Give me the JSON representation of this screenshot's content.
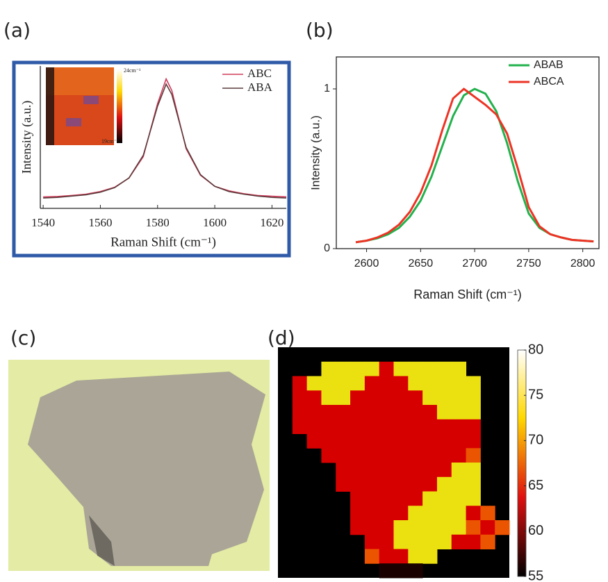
{
  "chart_data": [
    {
      "type": "line",
      "panel_label": "(a)",
      "xlabel": "Raman Shift (cm⁻¹)",
      "ylabel": "Intensity (a.u.)",
      "xlim": [
        1539,
        1625
      ],
      "xticks": [
        1540,
        1560,
        1580,
        1600,
        1620
      ],
      "ylim": [
        0,
        1.1
      ],
      "legend": "upper right",
      "inset_colorbar_labels": [
        "24cm⁻¹",
        "19cm⁻¹"
      ],
      "x": [
        1540,
        1545,
        1550,
        1555,
        1560,
        1565,
        1570,
        1575,
        1580,
        1583,
        1585,
        1590,
        1595,
        1600,
        1605,
        1610,
        1615,
        1620,
        1625
      ],
      "series": [
        {
          "name": "ABC",
          "color": "#d23a5a",
          "values": [
            0.088,
            0.092,
            0.1,
            0.11,
            0.13,
            0.163,
            0.234,
            0.4,
            0.81,
            1.0,
            0.91,
            0.46,
            0.256,
            0.17,
            0.135,
            0.114,
            0.1,
            0.094,
            0.089
          ]
        },
        {
          "name": "ABA",
          "color": "#5a3a3a",
          "values": [
            0.08,
            0.085,
            0.095,
            0.105,
            0.125,
            0.16,
            0.235,
            0.41,
            0.79,
            0.96,
            0.88,
            0.47,
            0.26,
            0.17,
            0.13,
            0.11,
            0.095,
            0.085,
            0.08
          ]
        }
      ]
    },
    {
      "type": "line",
      "panel_label": "(b)",
      "xlabel": "Raman Shift (cm⁻¹)",
      "ylabel": "Intensity (a.u.)",
      "xlim": [
        2572,
        2815
      ],
      "xticks": [
        2600,
        2650,
        2700,
        2750,
        2800
      ],
      "ylim": [
        0,
        1.2
      ],
      "yticks": [
        0,
        1
      ],
      "legend": "upper right",
      "x": [
        2590,
        2600,
        2610,
        2620,
        2630,
        2640,
        2650,
        2660,
        2670,
        2680,
        2690,
        2700,
        2710,
        2720,
        2730,
        2740,
        2750,
        2760,
        2770,
        2780,
        2790,
        2800,
        2810
      ],
      "series": [
        {
          "name": "ABAB",
          "color": "#22b14c",
          "values": [
            0.04,
            0.05,
            0.065,
            0.09,
            0.13,
            0.2,
            0.3,
            0.45,
            0.64,
            0.83,
            0.96,
            1.0,
            0.97,
            0.86,
            0.66,
            0.42,
            0.22,
            0.13,
            0.09,
            0.07,
            0.055,
            0.05,
            0.045
          ]
        },
        {
          "name": "ABCA",
          "color": "#ed3324",
          "values": [
            0.04,
            0.05,
            0.07,
            0.1,
            0.15,
            0.23,
            0.35,
            0.52,
            0.74,
            0.94,
            1.0,
            0.95,
            0.9,
            0.84,
            0.72,
            0.5,
            0.26,
            0.14,
            0.09,
            0.07,
            0.055,
            0.05,
            0.045
          ]
        }
      ]
    },
    {
      "type": "image",
      "panel_label": "(c)"
    },
    {
      "type": "heatmap",
      "panel_label": "(d)",
      "clim": [
        55,
        80
      ],
      "cticks": [
        55,
        60,
        65,
        70,
        75,
        80
      ],
      "z": [
        [
          null,
          null,
          null,
          null,
          null,
          null,
          null,
          null,
          null,
          null,
          null,
          null,
          null,
          null,
          null,
          null
        ],
        [
          null,
          null,
          null,
          73,
          73,
          73,
          73,
          63,
          73,
          73,
          73,
          73,
          73,
          null,
          null,
          null
        ],
        [
          null,
          63,
          73,
          73,
          73,
          73,
          63,
          63,
          63,
          73,
          73,
          73,
          73,
          73,
          null,
          null
        ],
        [
          null,
          63,
          63,
          73,
          73,
          63,
          63,
          63,
          63,
          63,
          73,
          73,
          73,
          73,
          null,
          null
        ],
        [
          null,
          63,
          63,
          63,
          63,
          63,
          63,
          63,
          63,
          63,
          63,
          73,
          73,
          73,
          null,
          null
        ],
        [
          null,
          63,
          63,
          63,
          63,
          63,
          63,
          63,
          63,
          63,
          63,
          63,
          63,
          63,
          null,
          null
        ],
        [
          null,
          null,
          63,
          63,
          63,
          63,
          63,
          63,
          63,
          63,
          63,
          63,
          63,
          63,
          null,
          null
        ],
        [
          null,
          null,
          null,
          63,
          63,
          63,
          63,
          63,
          63,
          63,
          63,
          63,
          63,
          67,
          null,
          null
        ],
        [
          null,
          null,
          null,
          null,
          63,
          63,
          63,
          63,
          63,
          63,
          63,
          63,
          73,
          73,
          null,
          null
        ],
        [
          null,
          null,
          null,
          null,
          63,
          63,
          63,
          63,
          63,
          63,
          63,
          73,
          73,
          73,
          null,
          null
        ],
        [
          null,
          null,
          null,
          null,
          null,
          63,
          63,
          63,
          63,
          63,
          73,
          73,
          73,
          73,
          null,
          null
        ],
        [
          null,
          null,
          null,
          null,
          null,
          63,
          63,
          63,
          63,
          73,
          73,
          73,
          73,
          63,
          67,
          null
        ],
        [
          null,
          null,
          null,
          null,
          null,
          63,
          63,
          63,
          73,
          73,
          73,
          73,
          73,
          67,
          63,
          67
        ],
        [
          null,
          null,
          null,
          null,
          null,
          null,
          63,
          63,
          73,
          73,
          73,
          73,
          63,
          63,
          67,
          null
        ],
        [
          null,
          null,
          null,
          null,
          null,
          null,
          67,
          63,
          63,
          73,
          73,
          null,
          null,
          null,
          null,
          null
        ],
        [
          null,
          null,
          null,
          null,
          null,
          null,
          null,
          56,
          56,
          56,
          null,
          null,
          null,
          null,
          null,
          null
        ]
      ]
    }
  ]
}
